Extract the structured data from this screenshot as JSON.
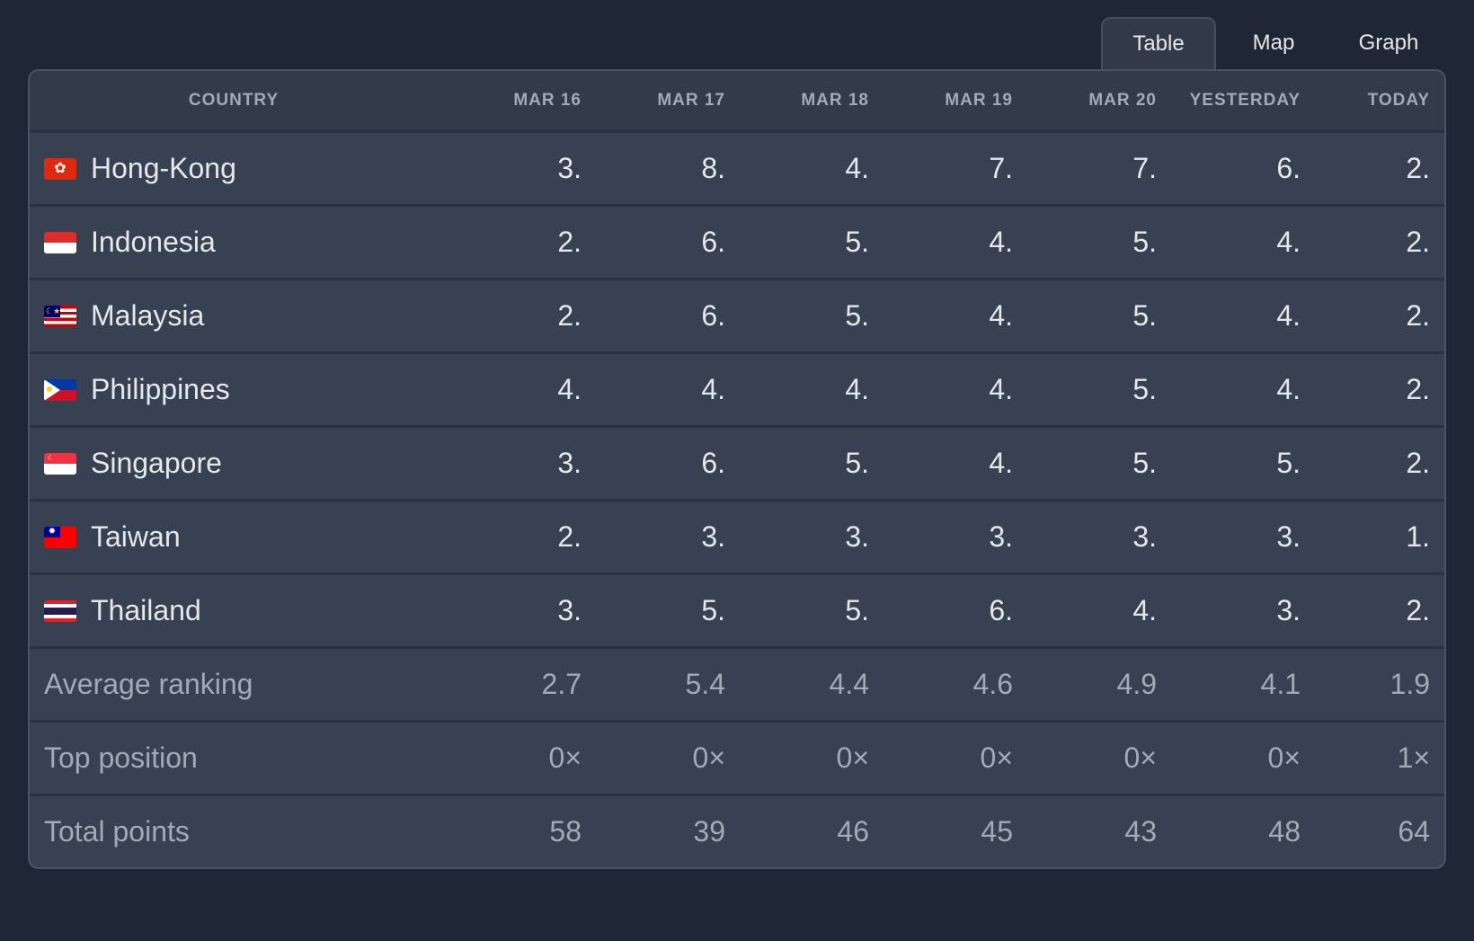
{
  "tabs": [
    {
      "label": "Table",
      "active": true
    },
    {
      "label": "Map",
      "active": false
    },
    {
      "label": "Graph",
      "active": false
    }
  ],
  "columns": [
    "COUNTRY",
    "MAR 16",
    "MAR 17",
    "MAR 18",
    "MAR 19",
    "MAR 20",
    "YESTERDAY",
    "TODAY"
  ],
  "rows": [
    {
      "country": "Hong-Kong",
      "flag": "hong-kong",
      "values": [
        "3.",
        "8.",
        "4.",
        "7.",
        "7.",
        "6.",
        "2."
      ]
    },
    {
      "country": "Indonesia",
      "flag": "indonesia",
      "values": [
        "2.",
        "6.",
        "5.",
        "4.",
        "5.",
        "4.",
        "2."
      ]
    },
    {
      "country": "Malaysia",
      "flag": "malaysia",
      "values": [
        "2.",
        "6.",
        "5.",
        "4.",
        "5.",
        "4.",
        "2."
      ]
    },
    {
      "country": "Philippines",
      "flag": "philippines",
      "values": [
        "4.",
        "4.",
        "4.",
        "4.",
        "5.",
        "4.",
        "2."
      ]
    },
    {
      "country": "Singapore",
      "flag": "singapore",
      "values": [
        "3.",
        "6.",
        "5.",
        "4.",
        "5.",
        "5.",
        "2."
      ]
    },
    {
      "country": "Taiwan",
      "flag": "taiwan",
      "values": [
        "2.",
        "3.",
        "3.",
        "3.",
        "3.",
        "3.",
        "1."
      ]
    },
    {
      "country": "Thailand",
      "flag": "thailand",
      "values": [
        "3.",
        "5.",
        "5.",
        "6.",
        "4.",
        "3.",
        "2."
      ]
    }
  ],
  "summary": [
    {
      "label": "Average ranking",
      "values": [
        "2.7",
        "5.4",
        "4.4",
        "4.6",
        "4.9",
        "4.1",
        "1.9"
      ]
    },
    {
      "label": "Top position",
      "values": [
        "0×",
        "0×",
        "0×",
        "0×",
        "0×",
        "0×",
        "1×"
      ]
    },
    {
      "label": "Total points",
      "values": [
        "58",
        "39",
        "46",
        "45",
        "43",
        "48",
        "64"
      ]
    }
  ],
  "colors": {
    "background": "#1f2736",
    "table": "#374151",
    "text": "#e5e7eb",
    "muted": "#a3aab6"
  }
}
